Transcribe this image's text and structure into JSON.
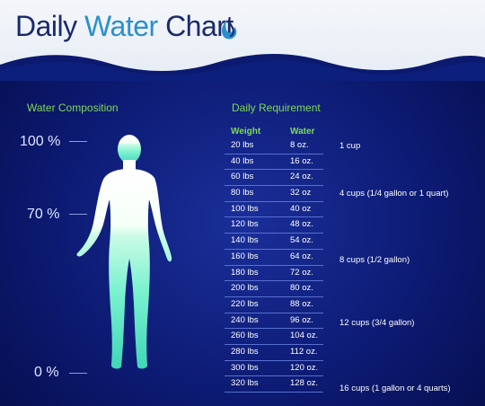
{
  "title": {
    "part1": "Daily",
    "part2": "Water",
    "part3": "Chart"
  },
  "composition": {
    "heading": "Water Composition",
    "labels": {
      "top": "100 %",
      "mid": "70 %",
      "bottom": "0 %"
    }
  },
  "requirement": {
    "heading": "Daily Requirement",
    "col_weight": "Weight",
    "col_water": "Water",
    "rows": [
      {
        "weight": "20 lbs",
        "water": "8 oz."
      },
      {
        "weight": "40 lbs",
        "water": "16 oz."
      },
      {
        "weight": "60 lbs",
        "water": "24 oz."
      },
      {
        "weight": "80 lbs",
        "water": "32 oz"
      },
      {
        "weight": "100 lbs",
        "water": "40 oz"
      },
      {
        "weight": "120 lbs",
        "water": "48 oz."
      },
      {
        "weight": "140 lbs",
        "water": "54 oz."
      },
      {
        "weight": "160 lbs",
        "water": "64 oz."
      },
      {
        "weight": "180 lbs",
        "water": "72 oz."
      },
      {
        "weight": "200 lbs",
        "water": "80 oz."
      },
      {
        "weight": "220 lbs",
        "water": "88 oz."
      },
      {
        "weight": "240 lbs",
        "water": "96 oz."
      },
      {
        "weight": "260 lbs",
        "water": "104 oz."
      },
      {
        "weight": "280 lbs",
        "water": "112 oz."
      },
      {
        "weight": "300 lbs",
        "water": "120 oz."
      },
      {
        "weight": "320 lbs",
        "water": "128 oz."
      }
    ],
    "notes": {
      "n1": "1 cup",
      "n4": "4 cups (1/4 gallon or 1 quart)",
      "n8": "8 cups (1/2 gallon)",
      "n12": "12 cups (3/4 gallon)",
      "n16": "16 cups (1 gallon or 4 quarts)"
    }
  },
  "colors": {
    "background": "#0c1a72",
    "header": "#f4f6fa",
    "accent_green": "#7ed957",
    "title_dark": "#1a2a6c",
    "title_blue": "#2a8fd0",
    "figure_fill": "#6ef0d0"
  },
  "icons": {
    "drop": "water-drop-icon"
  }
}
